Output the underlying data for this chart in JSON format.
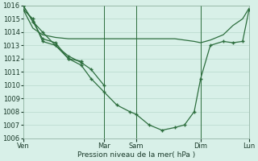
{
  "background_color": "#d8f0e8",
  "grid_color": "#b8d8cc",
  "line_color": "#2d6e3e",
  "marker_color": "#2d6e3e",
  "xlabel": "Pression niveau de la mer( hPa )",
  "ylim": [
    1006,
    1016
  ],
  "yticks": [
    1006,
    1007,
    1008,
    1009,
    1010,
    1011,
    1012,
    1013,
    1014,
    1015,
    1016
  ],
  "xtick_labels": [
    "Ven",
    "Mar",
    "Sam",
    "Dim",
    "Lun"
  ],
  "xtick_positions": [
    0.0,
    2.5,
    3.5,
    5.5,
    7.0
  ],
  "vlines": [
    2.5,
    3.5,
    5.5,
    7.0
  ],
  "series": [
    {
      "x": [
        0.0,
        0.3,
        0.6,
        1.0,
        1.4,
        1.8,
        2.1,
        2.5,
        2.9,
        3.3,
        3.5,
        3.9,
        4.3,
        4.7,
        5.0,
        5.3,
        5.5,
        5.8,
        6.2,
        6.5,
        6.8,
        7.0
      ],
      "y": [
        1016.0,
        1014.8,
        1014.0,
        1013.0,
        1012.0,
        1011.5,
        1010.5,
        1009.5,
        1008.5,
        1008.0,
        1007.8,
        1007.0,
        1006.6,
        1006.8,
        1007.0,
        1008.0,
        1010.5,
        1013.0,
        1013.3,
        1013.2,
        1013.3,
        1015.7
      ],
      "has_markers": true
    },
    {
      "x": [
        0.0,
        0.3,
        0.6,
        1.0,
        1.4,
        1.8,
        2.5,
        3.5,
        4.3,
        4.7,
        5.0,
        5.3,
        5.5,
        5.8,
        6.2,
        6.5,
        6.8,
        7.0
      ],
      "y": [
        1015.7,
        1014.3,
        1013.8,
        1013.6,
        1013.5,
        1013.5,
        1013.5,
        1013.5,
        1013.5,
        1013.5,
        1013.4,
        1013.3,
        1013.2,
        1013.4,
        1013.8,
        1014.5,
        1015.0,
        1015.8
      ],
      "has_markers": false
    },
    {
      "x": [
        0.0,
        0.3,
        0.6,
        1.0,
        1.4,
        1.8,
        2.1,
        2.5
      ],
      "y": [
        1015.7,
        1015.0,
        1013.3,
        1013.0,
        1012.2,
        1011.7,
        1011.2,
        1010.0
      ],
      "has_markers": true
    },
    {
      "x": [
        0.0,
        0.3,
        0.6,
        1.0,
        1.4,
        1.8
      ],
      "y": [
        1016.0,
        1014.8,
        1013.5,
        1013.2,
        1012.0,
        1011.8
      ],
      "has_markers": true
    }
  ]
}
